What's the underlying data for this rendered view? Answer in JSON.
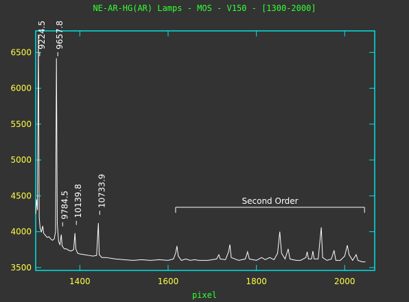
{
  "chart_data": {
    "type": "line",
    "title": "NE-AR-HG(AR) Lamps - MOS - V150 - [1300-2000]",
    "x_label": "pixel",
    "xlim": [
      1300,
      2068
    ],
    "xticks": [
      1400,
      1600,
      1800,
      2000
    ],
    "ylim": [
      3460,
      6800
    ],
    "yticks": [
      3500,
      4000,
      4500,
      5000,
      5500,
      6000,
      6500
    ],
    "frame_color": "#00e5e5",
    "series": [
      {
        "color": "#ffffff",
        "x": [
          1300,
          1302,
          1304,
          1306,
          1308,
          1310,
          1313,
          1316,
          1318,
          1322,
          1326,
          1330,
          1334,
          1338,
          1342,
          1345,
          1347,
          1349,
          1352,
          1355,
          1358,
          1360,
          1365,
          1370,
          1375,
          1380,
          1386,
          1389,
          1391,
          1395,
          1400,
          1410,
          1420,
          1430,
          1438,
          1442,
          1444,
          1450,
          1460,
          1480,
          1500,
          1520,
          1540,
          1560,
          1580,
          1600,
          1612,
          1617,
          1620,
          1623,
          1630,
          1640,
          1650,
          1660,
          1670,
          1690,
          1710,
          1715,
          1718,
          1730,
          1737,
          1740,
          1743,
          1760,
          1775,
          1780,
          1784,
          1800,
          1812,
          1820,
          1830,
          1840,
          1848,
          1853,
          1857,
          1865,
          1872,
          1876,
          1890,
          1900,
          1912,
          1915,
          1918,
          1925,
          1928,
          1931,
          1940,
          1947,
          1950,
          1960,
          1970,
          1976,
          1980,
          1990,
          2000,
          2006,
          2010,
          2018,
          2026,
          2030,
          2040,
          2047
        ],
        "values": [
          4250,
          4450,
          4300,
          6750,
          4200,
          4050,
          4000,
          4080,
          3980,
          3950,
          3920,
          3930,
          3900,
          3880,
          3900,
          4000,
          6420,
          4100,
          3860,
          3820,
          3960,
          3800,
          3760,
          3760,
          3740,
          3730,
          3750,
          3980,
          3760,
          3700,
          3690,
          3680,
          3670,
          3660,
          3670,
          4120,
          3680,
          3640,
          3640,
          3620,
          3610,
          3600,
          3610,
          3600,
          3610,
          3600,
          3620,
          3700,
          3800,
          3660,
          3600,
          3620,
          3600,
          3610,
          3600,
          3600,
          3620,
          3680,
          3620,
          3610,
          3720,
          3820,
          3640,
          3600,
          3620,
          3720,
          3620,
          3600,
          3640,
          3610,
          3640,
          3610,
          3700,
          4000,
          3700,
          3620,
          3760,
          3620,
          3600,
          3600,
          3640,
          3720,
          3620,
          3620,
          3730,
          3620,
          3620,
          4060,
          3640,
          3600,
          3620,
          3740,
          3600,
          3600,
          3660,
          3810,
          3680,
          3600,
          3680,
          3600,
          3580,
          3580
        ]
      }
    ],
    "annotations": [
      {
        "text": "9224.5",
        "x": 1306
      },
      {
        "text": "9657.8",
        "x": 1347
      },
      {
        "text": "9784.5",
        "x": 1358
      },
      {
        "text": "10139.8",
        "x": 1389
      },
      {
        "text": "10733.9",
        "x": 1442
      }
    ],
    "bracket": {
      "text": "Second Order",
      "x": [
        1617,
        2045
      ]
    }
  }
}
